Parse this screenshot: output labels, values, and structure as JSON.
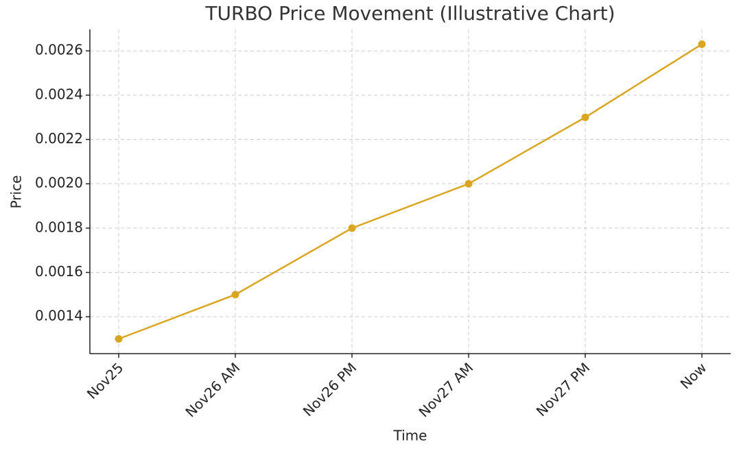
{
  "chart_data": {
    "type": "line",
    "title": "TURBO Price Movement (Illustrative Chart)",
    "x_label": "Time",
    "y_label": "Price",
    "categories": [
      "Nov25",
      "Nov26 AM",
      "Nov26 PM",
      "Nov27 AM",
      "Nov27 PM",
      "Now"
    ],
    "values": [
      0.0013,
      0.0015,
      0.0018,
      0.002,
      0.0023,
      0.00263
    ],
    "color": "#daa520",
    "ylim": [
      0.0012335,
      0.0026965
    ],
    "yticks": [
      0.0014,
      0.0016,
      0.0018,
      {
        "value": 0.002,
        "label": "0.0020"
      },
      0.0022,
      0.0024,
      0.0026
    ],
    "grid": true
  }
}
